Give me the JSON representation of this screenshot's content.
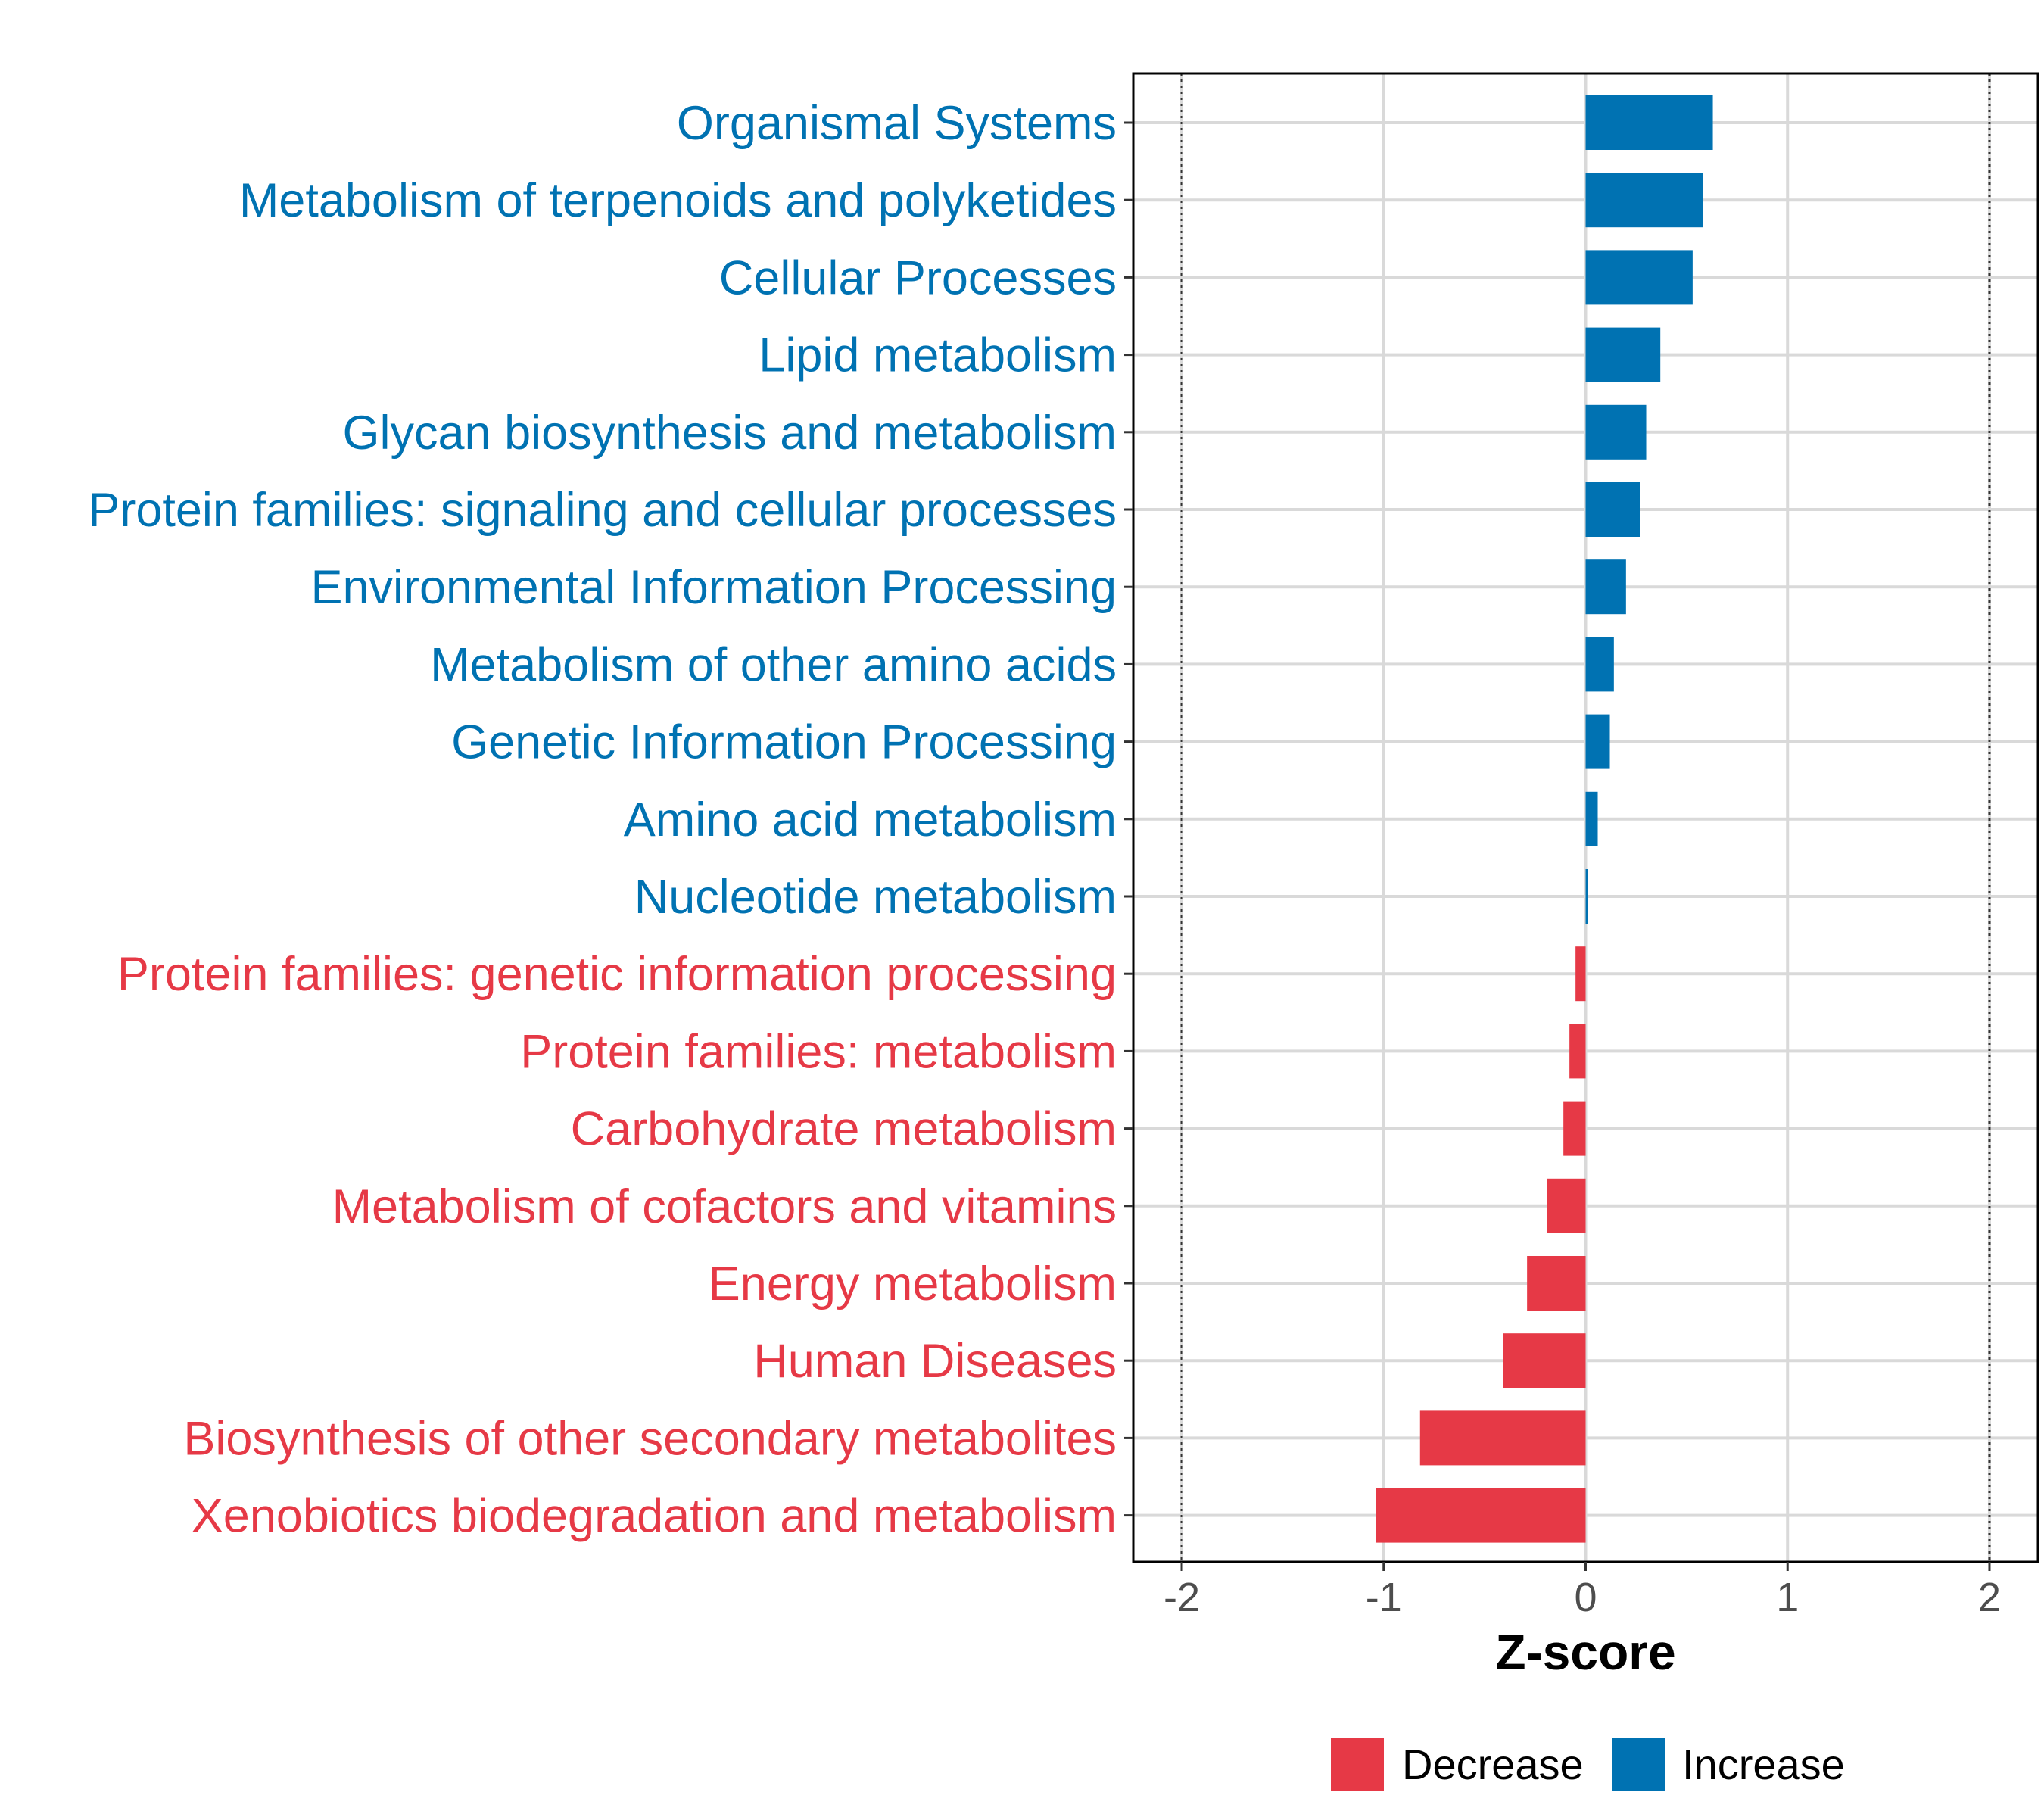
{
  "chart_data": {
    "type": "bar",
    "orientation": "horizontal",
    "xlabel": "Z-score",
    "xlim": [
      -2.24,
      2.24
    ],
    "xticks": [
      -2,
      -1,
      0,
      1,
      2
    ],
    "xtick_labels": [
      "-2",
      "-1",
      "0",
      "1",
      "2"
    ],
    "reference_lines": [
      -2,
      2
    ],
    "grid": true,
    "legend_position": "bottom",
    "legend": [
      {
        "label": "Decrease",
        "color": "#E63946"
      },
      {
        "label": "Increase",
        "color": "#0072B2"
      }
    ],
    "categories": [
      {
        "label": "Organismal Systems",
        "value": 0.63,
        "group": "Increase"
      },
      {
        "label": "Metabolism of terpenoids and polyketides",
        "value": 0.58,
        "group": "Increase"
      },
      {
        "label": "Cellular Processes",
        "value": 0.53,
        "group": "Increase"
      },
      {
        "label": "Lipid metabolism",
        "value": 0.37,
        "group": "Increase"
      },
      {
        "label": "Glycan biosynthesis and metabolism",
        "value": 0.3,
        "group": "Increase"
      },
      {
        "label": "Protein families: signaling and cellular processes",
        "value": 0.27,
        "group": "Increase"
      },
      {
        "label": "Environmental Information Processing",
        "value": 0.2,
        "group": "Increase"
      },
      {
        "label": "Metabolism of other amino acids",
        "value": 0.14,
        "group": "Increase"
      },
      {
        "label": "Genetic Information Processing",
        "value": 0.12,
        "group": "Increase"
      },
      {
        "label": "Amino acid metabolism",
        "value": 0.06,
        "group": "Increase"
      },
      {
        "label": "Nucleotide metabolism",
        "value": 0.01,
        "group": "Increase"
      },
      {
        "label": "Protein families: genetic information processing",
        "value": -0.05,
        "group": "Decrease"
      },
      {
        "label": "Protein families: metabolism",
        "value": -0.08,
        "group": "Decrease"
      },
      {
        "label": "Carbohydrate metabolism",
        "value": -0.11,
        "group": "Decrease"
      },
      {
        "label": "Metabolism of cofactors and vitamins",
        "value": -0.19,
        "group": "Decrease"
      },
      {
        "label": "Energy metabolism",
        "value": -0.29,
        "group": "Decrease"
      },
      {
        "label": "Human Diseases",
        "value": -0.41,
        "group": "Decrease"
      },
      {
        "label": "Biosynthesis of other secondary metabolites",
        "value": -0.82,
        "group": "Decrease"
      },
      {
        "label": "Xenobiotics biodegradation and metabolism",
        "value": -1.04,
        "group": "Decrease"
      }
    ]
  }
}
